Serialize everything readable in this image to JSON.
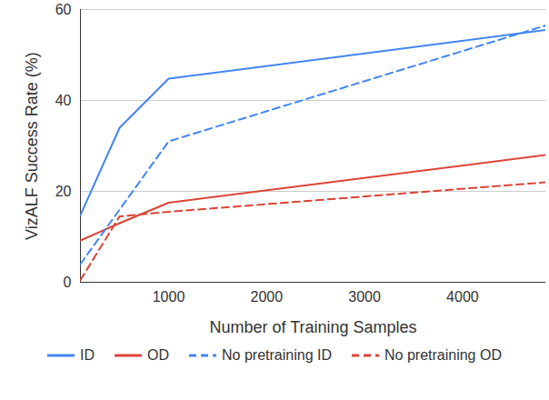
{
  "chart_data": {
    "type": "line",
    "x_label": "Number of Training Samples",
    "y_label": "VizALF Success Rate (%)",
    "x": [
      100,
      500,
      1000,
      4850
    ],
    "xlim": [
      100,
      4850
    ],
    "xticks": [
      1000,
      2000,
      3000,
      4000
    ],
    "ylim": [
      0,
      60
    ],
    "yticks": [
      0,
      20,
      40,
      60
    ],
    "grid": true,
    "legend": "bottom",
    "series": [
      {
        "name": "ID",
        "color": "#4285f4",
        "line_style": "solid",
        "values": [
          14.8,
          34,
          44.8,
          55.5
        ]
      },
      {
        "name": "OD",
        "color": "#db4437",
        "line_style": "solid",
        "values": [
          9.2,
          13,
          17.5,
          28
        ]
      },
      {
        "name": "No pretraining ID",
        "color": "#4285f4",
        "line_style": "dashed",
        "values": [
          4,
          16,
          31,
          56.5
        ]
      },
      {
        "name": "No pretraining OD",
        "color": "#db4437",
        "line_style": "dashed",
        "values": [
          0.5,
          14.5,
          15.5,
          22
        ]
      }
    ]
  }
}
